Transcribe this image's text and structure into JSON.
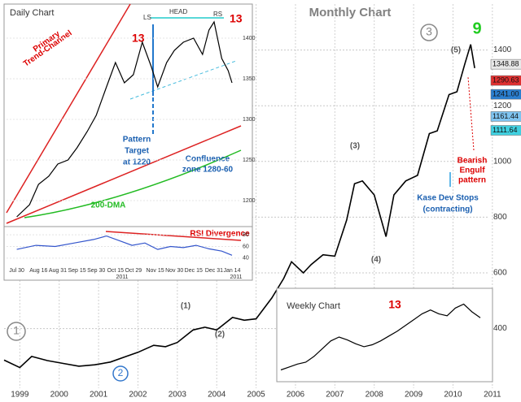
{
  "chart_data": [
    {
      "type": "line",
      "title": "Monthly Chart",
      "color": "#000000",
      "x": [
        1999.1,
        1999.5,
        1999.8,
        2000.2,
        2000.6,
        2001.0,
        2001.4,
        2001.8,
        2002.2,
        2002.5,
        2002.9,
        2003.2,
        2003.5,
        2003.9,
        2004.2,
        2004.5,
        2004.9,
        2005.2,
        2005.5,
        2005.9,
        2006.2,
        2006.4,
        2006.7,
        2006.9,
        2007.2,
        2007.5,
        2007.8,
        2008.0,
        2008.2,
        2008.5,
        2008.8,
        2009.0,
        2009.3,
        2009.6,
        2009.9,
        2010.1,
        2010.4,
        2010.6,
        2010.8,
        2010.95,
        2011.05
      ],
      "values": [
        287,
        260,
        300,
        285,
        275,
        265,
        270,
        280,
        300,
        315,
        340,
        335,
        350,
        395,
        405,
        395,
        440,
        430,
        435,
        510,
        580,
        640,
        600,
        630,
        665,
        660,
        790,
        920,
        930,
        880,
        730,
        880,
        930,
        950,
        1100,
        1110,
        1240,
        1250,
        1350,
        1420,
        1335
      ],
      "xlim": [
        1999.1,
        2011.4
      ],
      "ylim": [
        186,
        1565
      ],
      "xticks": [
        {
          "value": 1999.5,
          "label": "1999"
        },
        {
          "value": 2000.5,
          "label": "2000"
        },
        {
          "value": 2001.5,
          "label": "2001"
        },
        {
          "value": 2002.5,
          "label": "2002"
        },
        {
          "value": 2003.5,
          "label": "2003"
        },
        {
          "value": 2004.5,
          "label": "2004"
        },
        {
          "value": 2005.5,
          "label": "2005"
        },
        {
          "value": 2006.5,
          "label": "2006"
        },
        {
          "value": 2007.5,
          "label": "2007"
        },
        {
          "value": 2008.5,
          "label": "2008"
        },
        {
          "value": 2009.5,
          "label": "2009"
        },
        {
          "value": 2010.5,
          "label": "2010"
        },
        {
          "value": 2011.5,
          "label": "2011"
        }
      ],
      "yticks": [
        400,
        600,
        800,
        1000,
        1200,
        1400
      ],
      "grid": true,
      "price_labels": [
        1348.88,
        1290.63,
        {
          "value": 1241,
          "label": "1241.00"
        },
        1161.44,
        1111.64
      ],
      "price_label_colors": [
        "#e8e8e8",
        "#e03030",
        "#2a7fd0",
        "#7fc4f0",
        "#40d0e0"
      ],
      "annotations": [
        "(1)",
        "(2)",
        "(3)",
        "(4)",
        "(5)",
        "1",
        "2",
        "3",
        "9",
        "Bearish",
        "Engulf",
        "pattern",
        "Kase Dev Stops",
        "(contracting)"
      ]
    },
    {
      "type": "line",
      "title": "Daily Chart",
      "color": "#000000",
      "x": [
        0,
        10,
        17,
        25,
        32,
        40,
        47,
        55,
        62,
        70,
        77,
        84,
        91,
        98,
        105,
        110,
        117,
        123,
        130,
        138,
        145,
        150,
        154,
        160,
        165,
        168
      ],
      "values": [
        1180,
        1195,
        1220,
        1230,
        1245,
        1250,
        1265,
        1285,
        1305,
        1340,
        1370,
        1345,
        1355,
        1395,
        1365,
        1340,
        1370,
        1385,
        1395,
        1400,
        1380,
        1410,
        1420,
        1375,
        1360,
        1345
      ],
      "xlim": [
        -8,
        175
      ],
      "ylim": [
        1172,
        1432
      ],
      "xticks": [
        {
          "value": 0,
          "label": "Jul 30"
        },
        {
          "value": 17,
          "label": "Aug 16"
        },
        {
          "value": 32,
          "label": "Aug 31"
        },
        {
          "value": 47,
          "label": "Sep 15"
        },
        {
          "value": 62,
          "label": "Sep 30"
        },
        {
          "value": 77,
          "label": "Oct 15"
        },
        {
          "value": 91,
          "label": "Oct 29"
        },
        {
          "value": 108,
          "label": "Nov 15"
        },
        {
          "value": 123,
          "label": "Nov 30"
        },
        {
          "value": 138,
          "label": "Dec 15"
        },
        {
          "value": 154,
          "label": "Dec 31"
        },
        {
          "value": 168,
          "label": "Jan 14"
        }
      ],
      "yticks": [
        1200,
        1250,
        1300,
        1350,
        1400
      ],
      "annotations": [
        "LS",
        "HEAD",
        "RS",
        "13",
        "13",
        "Primary",
        "Trend-Channel",
        "Pattern",
        "Target",
        "at 1220",
        "Confluence",
        "zone 1280-60",
        "200-DMA",
        "RSI Divergence",
        "2011",
        "2011"
      ]
    },
    {
      "type": "line",
      "color": "#3355cc",
      "x": [
        0,
        15,
        30,
        45,
        60,
        70,
        80,
        90,
        100,
        110,
        120,
        130,
        140,
        150,
        160,
        168
      ],
      "values": [
        55,
        62,
        60,
        66,
        72,
        78,
        70,
        62,
        66,
        55,
        60,
        58,
        62,
        56,
        52,
        45
      ],
      "xlim": [
        -8,
        175
      ],
      "ylim": [
        30,
        90
      ],
      "yticks": [
        40,
        60,
        80
      ]
    },
    {
      "type": "line",
      "title": "Weekly Chart",
      "color": "#000000",
      "values": [
        1080,
        1095,
        1110,
        1120,
        1150,
        1190,
        1230,
        1250,
        1235,
        1215,
        1200,
        1210,
        1230,
        1255,
        1280,
        1310,
        1340,
        1370,
        1390,
        1370,
        1360,
        1400,
        1420,
        1380,
        1350
      ],
      "ylim": [
        1040,
        1460
      ],
      "annotations": [
        "13"
      ]
    }
  ]
}
